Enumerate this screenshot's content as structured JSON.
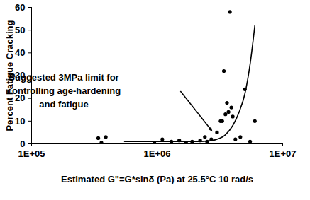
{
  "chart_data": {
    "type": "scatter",
    "x_label": "Estimated G\"=G*sinδ (Pa) at 25.5°C 10 rad/s",
    "y_label": "Percent Fatigue Cracking",
    "log": "x",
    "grid": false,
    "xlim": [
      100000,
      10000000
    ],
    "xticks": [
      {
        "value": 100000,
        "label": "1E+05"
      },
      {
        "value": 1000000,
        "label": "1E+06"
      },
      {
        "value": 10000000,
        "label": "1E+07"
      }
    ],
    "ylim": [
      0,
      60
    ],
    "yticks": [
      0,
      10,
      20,
      30,
      40,
      50,
      60
    ],
    "annotation": {
      "text": "Suggested 3MPa limit for\ncontrolling age-hardening\nand fatigue",
      "x": 2800000,
      "y": 5
    },
    "series": [
      {
        "type": "scatter",
        "marker": "circle",
        "color": "#000000",
        "x": [
          340000,
          360000,
          390000,
          950000,
          1100000,
          1300000,
          1500000,
          1700000,
          1900000,
          2200000,
          2400000,
          2500000,
          2700000,
          3000000,
          3200000,
          3300000,
          3400000,
          3500000,
          3600000,
          3700000,
          3800000,
          3900000,
          4000000,
          4200000,
          4600000,
          5000000,
          5500000,
          6000000
        ],
        "values": [
          2.5,
          0.5,
          3,
          0.5,
          2,
          1,
          1.5,
          0.5,
          1,
          1.5,
          3,
          1,
          2,
          5,
          10,
          10,
          32,
          13,
          18,
          14,
          58,
          16,
          12,
          2,
          3,
          24,
          1,
          10
        ]
      },
      {
        "type": "line",
        "line_style": "solid",
        "color": "#000000",
        "x": [
          550000,
          1000000,
          1500000,
          2000000,
          2500000,
          3000000,
          3500000,
          4000000,
          4500000,
          5000000,
          5500000,
          6000000
        ],
        "values": [
          1,
          1,
          1,
          1,
          1.2,
          2,
          4,
          8,
          14,
          22,
          35,
          52
        ]
      }
    ]
  }
}
